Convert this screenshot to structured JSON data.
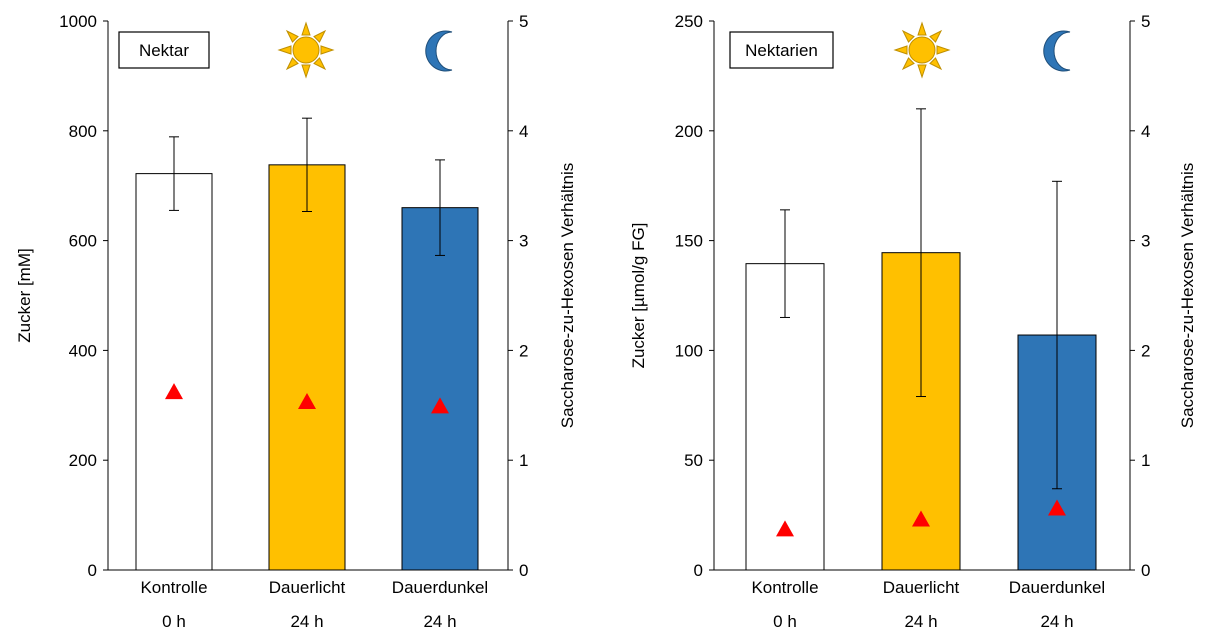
{
  "chart_data": [
    {
      "type": "bar",
      "panel_label": "Nektar",
      "categories": [
        "Kontrolle",
        "Dauerlicht",
        "Dauerdunkel"
      ],
      "category_sublabels": [
        "0 h",
        "24 h",
        "24 h"
      ],
      "series": [
        {
          "values": [
            722,
            738,
            660
          ],
          "error": [
            67,
            85,
            87
          ],
          "colors": [
            "#ffffff",
            "#ffc000",
            "#2e75b6"
          ],
          "axis": "left"
        },
        {
          "type": "scatter",
          "marker": "triangle",
          "color": "#ff0000",
          "values": [
            1.62,
            1.53,
            1.49
          ],
          "axis": "right"
        }
      ],
      "ylabel": "Zucker [mM]",
      "ylim": [
        0,
        1000
      ],
      "yticks": [
        0,
        200,
        400,
        600,
        800,
        1000
      ],
      "y2label": "Saccharose-zu-Hexosen Verhältnis",
      "y2lim": [
        0,
        5
      ],
      "y2ticks": [
        0,
        1,
        2,
        3,
        4,
        5
      ],
      "icons": [
        "sun-icon",
        "moon-icon"
      ],
      "grid": false
    },
    {
      "type": "bar",
      "panel_label": "Nektarien",
      "categories": [
        "Kontrolle",
        "Dauerlicht",
        "Dauerdunkel"
      ],
      "category_sublabels": [
        "0 h",
        "24 h",
        "24 h"
      ],
      "series": [
        {
          "values": [
            139.5,
            144.5,
            107
          ],
          "error": [
            24.5,
            65.5,
            70
          ],
          "colors": [
            "#ffffff",
            "#ffc000",
            "#2e75b6"
          ],
          "axis": "left"
        },
        {
          "type": "scatter",
          "marker": "triangle",
          "color": "#ff0000",
          "values": [
            0.37,
            0.46,
            0.56
          ],
          "axis": "right"
        }
      ],
      "ylabel": "Zucker [µmol/g FG]",
      "ylim": [
        0,
        250
      ],
      "yticks": [
        0,
        50,
        100,
        150,
        200,
        250
      ],
      "y2label": "Saccharose-zu-Hexosen Verhältnis",
      "y2lim": [
        0,
        5
      ],
      "y2ticks": [
        0,
        1,
        2,
        3,
        4,
        5
      ],
      "icons": [
        "sun-icon",
        "moon-icon"
      ],
      "grid": false
    }
  ]
}
